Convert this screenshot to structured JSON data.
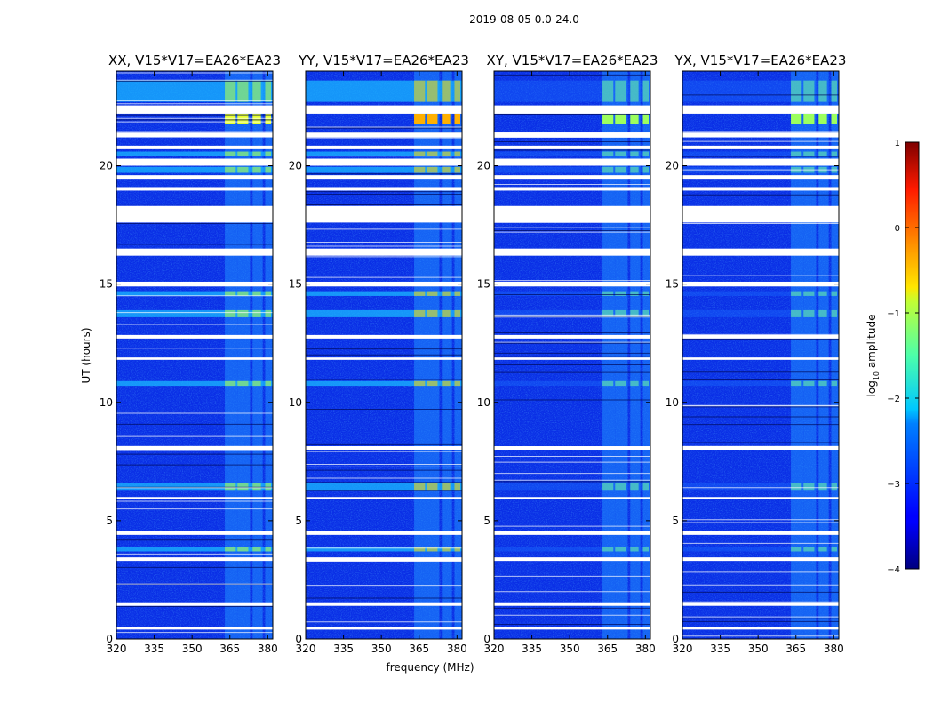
{
  "figure_title": "2019-08-05 0.0-24.0",
  "chart_data": [
    {
      "type": "heatmap",
      "title": "XX, V15*V17=EA26*EA23",
      "xlabel": "",
      "ylabel": "UT (hours)",
      "xlim": [
        320,
        382
      ],
      "ylim": [
        0,
        24
      ],
      "xticks": [
        320,
        335,
        350,
        365,
        380
      ],
      "yticks": [
        0,
        5,
        10,
        15,
        20
      ],
      "bright_channel_bands_mhz": [
        [
          363,
          368
        ],
        [
          368,
          373
        ],
        [
          374,
          378
        ],
        [
          379,
          383
        ]
      ],
      "peak_log10_amplitude": -0.5
    },
    {
      "type": "heatmap",
      "title": "YY, V15*V17=EA26*EA23",
      "xlabel": "frequency (MHz)",
      "ylabel": "",
      "xlim": [
        320,
        382
      ],
      "ylim": [
        0,
        24
      ],
      "xticks": [
        320,
        335,
        350,
        365,
        380
      ],
      "yticks": [
        0,
        5,
        10,
        15,
        20
      ],
      "bright_channel_bands_mhz": [
        [
          363,
          368
        ],
        [
          368,
          373
        ],
        [
          374,
          378
        ],
        [
          379,
          383
        ]
      ],
      "peak_log10_amplitude": 0.1
    },
    {
      "type": "heatmap",
      "title": "XY, V15*V17=EA26*EA23",
      "xlabel": "",
      "ylabel": "",
      "xlim": [
        320,
        382
      ],
      "ylim": [
        0,
        24
      ],
      "xticks": [
        320,
        335,
        350,
        365,
        380
      ],
      "yticks": [
        0,
        5,
        10,
        15,
        20
      ],
      "bright_channel_bands_mhz": [
        [
          363,
          368
        ],
        [
          368,
          373
        ],
        [
          374,
          378
        ],
        [
          379,
          383
        ]
      ],
      "peak_log10_amplitude": -1.0
    },
    {
      "type": "heatmap",
      "title": "YX, V15*V17=EA26*EA23",
      "xlabel": "",
      "ylabel": "",
      "xlim": [
        320,
        382
      ],
      "ylim": [
        0,
        24
      ],
      "xticks": [
        320,
        335,
        350,
        365,
        380
      ],
      "yticks": [
        0,
        5,
        10,
        15,
        20
      ],
      "bright_channel_bands_mhz": [
        [
          363,
          368
        ],
        [
          368,
          373
        ],
        [
          374,
          378
        ],
        [
          379,
          383
        ]
      ],
      "peak_log10_amplitude": -1.0
    }
  ],
  "flagged_time_ranges_hours": [
    [
      22.2,
      22.55
    ],
    [
      21.2,
      21.4
    ],
    [
      20.7,
      20.85
    ],
    [
      20.0,
      20.3
    ],
    [
      19.45,
      19.6
    ],
    [
      18.95,
      19.1
    ],
    [
      17.6,
      18.3
    ],
    [
      16.2,
      16.5
    ],
    [
      14.9,
      15.1
    ],
    [
      12.7,
      12.85
    ],
    [
      11.8,
      11.9
    ],
    [
      8.0,
      8.15
    ],
    [
      5.9,
      6.0
    ],
    [
      4.4,
      4.55
    ],
    [
      3.3,
      3.45
    ],
    [
      1.4,
      1.55
    ],
    [
      0.4,
      0.5
    ]
  ],
  "colorbar": {
    "label": "log",
    "label_sub": "10",
    "label_rest": " amplitude",
    "range": [
      -4,
      1
    ],
    "ticks": [
      1,
      0,
      -1,
      -2,
      -3,
      -4
    ],
    "tick_labels": [
      "1",
      "0",
      "−1",
      "−2",
      "−3",
      "−4"
    ],
    "colormap": "jet"
  }
}
